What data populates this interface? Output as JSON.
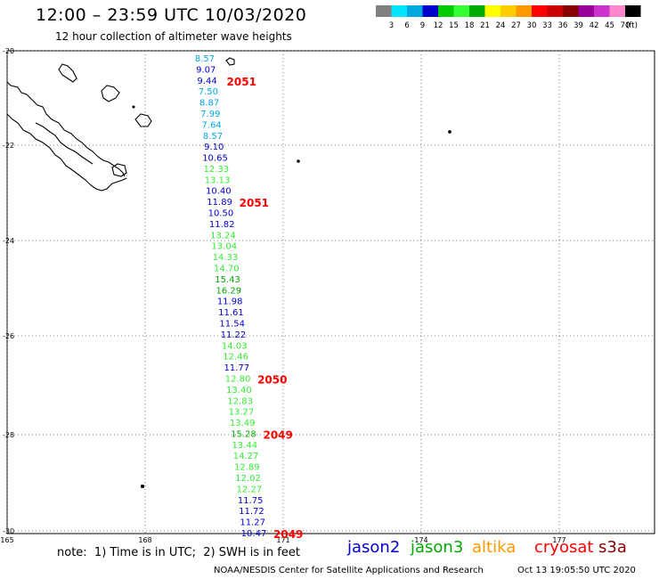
{
  "header": {
    "title": "12:00 – 23:59 UTC 10/03/2020",
    "subtitle": "12 hour collection of altimeter wave heights"
  },
  "colorbar": {
    "colors": [
      "#808080",
      "#00e5ff",
      "#00a8e0",
      "#0000cc",
      "#00cc00",
      "#33ff33",
      "#00aa00",
      "#ffff00",
      "#ffcc00",
      "#ff9900",
      "#ff0000",
      "#cc0000",
      "#880000",
      "#990099",
      "#cc33cc",
      "#ff88cc",
      "#000000"
    ],
    "labels": [
      "3",
      "6",
      "9",
      "12",
      "15",
      "18",
      "21",
      "24",
      "27",
      "30",
      "33",
      "36",
      "39",
      "42",
      "45",
      "70"
    ],
    "unit": "(ft)"
  },
  "axes": {
    "lat_labels": [
      "-20",
      "-22",
      "-24",
      "-26",
      "-28",
      "-30"
    ],
    "lon_labels": [
      "165",
      "168",
      "171",
      "174",
      "177"
    ]
  },
  "track": {
    "readings": [
      {
        "value": "8.57",
        "color": "#00a8e0"
      },
      {
        "value": "9.07",
        "color": "#0000cc"
      },
      {
        "value": "9.44",
        "color": "#0000cc"
      },
      {
        "value": "7.50",
        "color": "#00a8e0"
      },
      {
        "value": "8.87",
        "color": "#00a8e0"
      },
      {
        "value": "7.99",
        "color": "#00a8e0"
      },
      {
        "value": "7.64",
        "color": "#00a8e0"
      },
      {
        "value": "8.57",
        "color": "#00a8e0"
      },
      {
        "value": "9.10",
        "color": "#0000cc"
      },
      {
        "value": "10.65",
        "color": "#0000cc"
      },
      {
        "value": "12.33",
        "color": "#33ee33"
      },
      {
        "value": "13.13",
        "color": "#33ee33"
      },
      {
        "value": "10.40",
        "color": "#0000cc"
      },
      {
        "value": "11.89",
        "color": "#0000cc"
      },
      {
        "value": "10.50",
        "color": "#0000cc"
      },
      {
        "value": "11.82",
        "color": "#0000cc"
      },
      {
        "value": "13.24",
        "color": "#33ee33"
      },
      {
        "value": "13.04",
        "color": "#33ee33"
      },
      {
        "value": "14.33",
        "color": "#33ee33"
      },
      {
        "value": "14.70",
        "color": "#33ee33"
      },
      {
        "value": "15.43",
        "color": "#00aa00"
      },
      {
        "value": "16.29",
        "color": "#00aa00"
      },
      {
        "value": "11.98",
        "color": "#0000cc"
      },
      {
        "value": "11.61",
        "color": "#0000cc"
      },
      {
        "value": "11.54",
        "color": "#0000cc"
      },
      {
        "value": "11.22",
        "color": "#0000cc"
      },
      {
        "value": "14.03",
        "color": "#33ee33"
      },
      {
        "value": "12.46",
        "color": "#33ee33"
      },
      {
        "value": "11.77",
        "color": "#0000cc"
      },
      {
        "value": "12.80",
        "color": "#33ee33"
      },
      {
        "value": "13.40",
        "color": "#33ee33"
      },
      {
        "value": "12.83",
        "color": "#33ee33"
      },
      {
        "value": "13.27",
        "color": "#33ee33"
      },
      {
        "value": "13.49",
        "color": "#33ee33"
      },
      {
        "value": "15.28",
        "color": "#00aa00"
      },
      {
        "value": "13.44",
        "color": "#33ee33"
      },
      {
        "value": "14.27",
        "color": "#33ee33"
      },
      {
        "value": "12.89",
        "color": "#33ee33"
      },
      {
        "value": "12.02",
        "color": "#33ee33"
      },
      {
        "value": "12.27",
        "color": "#33ee33"
      },
      {
        "value": "11.75",
        "color": "#0000cc"
      },
      {
        "value": "11.72",
        "color": "#0000cc"
      },
      {
        "value": "11.27",
        "color": "#0000cc"
      },
      {
        "value": "10.47",
        "color": "#0000cc"
      }
    ],
    "time_labels": [
      {
        "text": "2051",
        "after_index": 2
      },
      {
        "text": "2051",
        "after_index": 13
      },
      {
        "text": "2050",
        "after_index": 29
      },
      {
        "text": "2049",
        "after_index": 34
      },
      {
        "text": "2049",
        "after_index": 43
      }
    ],
    "time_label_color": "#ff0000"
  },
  "footer": {
    "note": "note:  1) Time is in UTC;  2) SWH is in feet",
    "satellites": [
      {
        "name": "jason2",
        "color": "#0000cc"
      },
      {
        "name": "jason3",
        "color": "#00aa00"
      },
      {
        "name": "altika",
        "color": "#ff9900"
      },
      {
        "name": "cryosat",
        "color": "#ff0000"
      },
      {
        "name": "s3a",
        "color": "#880000"
      }
    ],
    "credit": "NOAA/NESDIS Center for Satellite Applications and Research",
    "timestamp": "Oct 13 19:05:50 UTC 2020"
  }
}
